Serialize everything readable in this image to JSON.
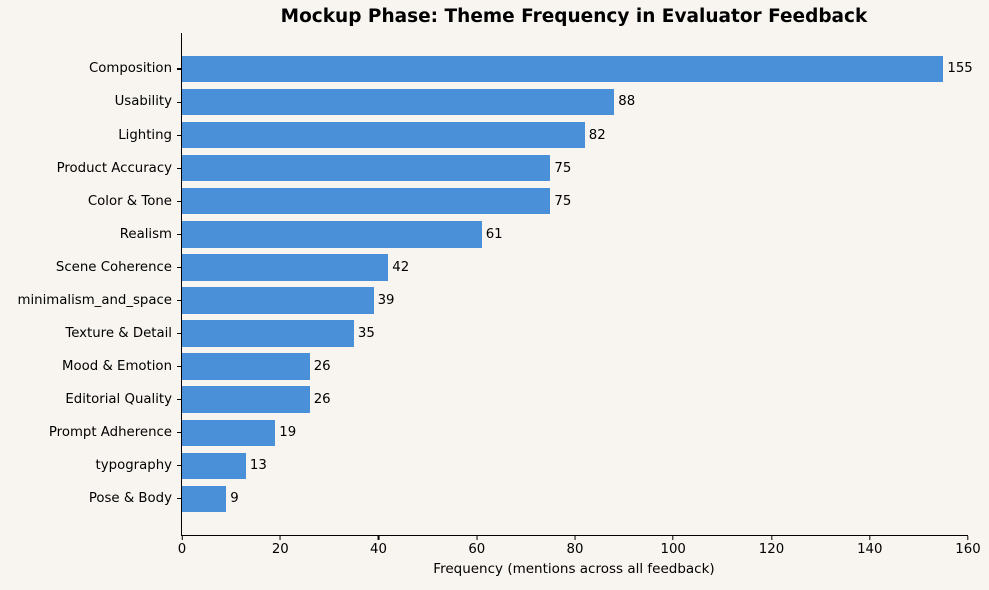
{
  "chart_data": {
    "type": "bar",
    "orientation": "horizontal",
    "title": "Mockup Phase: Theme Frequency in Evaluator Feedback",
    "xlabel": "Frequency (mentions across all feedback)",
    "ylabel": "",
    "categories": [
      "Composition",
      "Usability",
      "Lighting",
      "Product Accuracy",
      "Color & Tone",
      "Realism",
      "Scene Coherence",
      "minimalism_and_space",
      "Texture & Detail",
      "Mood & Emotion",
      "Editorial Quality",
      "Prompt Adherence",
      "typography",
      "Pose & Body"
    ],
    "values": [
      155,
      88,
      82,
      75,
      75,
      61,
      42,
      39,
      35,
      26,
      26,
      19,
      13,
      9
    ],
    "value_labels_shown": true,
    "xlim": [
      0,
      160
    ],
    "xticks": [
      0,
      20,
      40,
      60,
      80,
      100,
      120,
      140,
      160
    ],
    "grid": false,
    "legend": "none",
    "bar_color": "#4a90d9",
    "background_color": "#f8f5f0",
    "text_color": "#000000"
  }
}
